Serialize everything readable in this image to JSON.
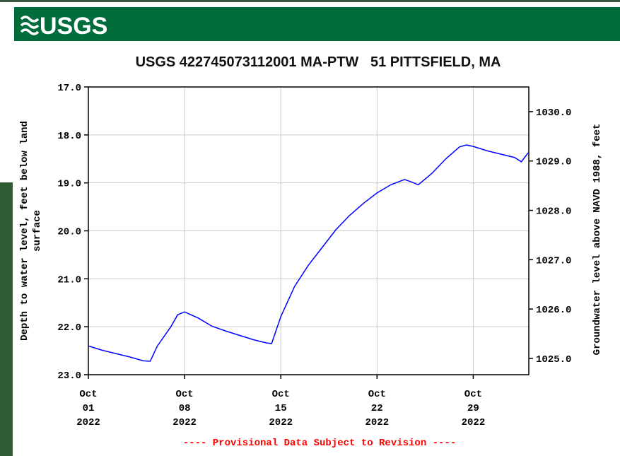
{
  "logo": "USGS",
  "chart_data": {
    "type": "line",
    "title": "USGS 422745073112001 MA-PTW   51 PITTSFIELD, MA",
    "ylabel": [
      "Depth to water level, feet below land",
      "surface"
    ],
    "y2label": "Groundwater level above NAVD 1988, feet",
    "note": "---- Provisional Data Subject to Revision ----",
    "x": [
      "2022-10-01",
      "2022-10-02",
      "2022-10-03",
      "2022-10-04",
      "2022-10-05",
      "2022-10-05T12:00",
      "2022-10-06",
      "2022-10-07",
      "2022-10-07T12:00",
      "2022-10-08",
      "2022-10-09",
      "2022-10-10",
      "2022-10-11",
      "2022-10-12",
      "2022-10-13",
      "2022-10-14",
      "2022-10-14T08:00",
      "2022-10-15",
      "2022-10-16",
      "2022-10-17",
      "2022-10-18",
      "2022-10-19",
      "2022-10-20",
      "2022-10-21",
      "2022-10-22",
      "2022-10-23",
      "2022-10-24",
      "2022-10-24T12:00",
      "2022-10-25",
      "2022-10-26",
      "2022-10-27",
      "2022-10-28",
      "2022-10-28T12:00",
      "2022-10-29",
      "2022-10-30",
      "2022-10-31",
      "2022-11-01",
      "2022-11-01T12:00",
      "2022-11-02"
    ],
    "series": [
      {
        "name": "Depth to water level",
        "color": "#0000ff",
        "values": [
          22.4,
          22.49,
          22.56,
          22.63,
          22.71,
          22.72,
          22.41,
          22.0,
          21.75,
          21.69,
          21.82,
          21.99,
          22.09,
          22.18,
          22.27,
          22.34,
          22.35,
          21.79,
          21.16,
          20.72,
          20.35,
          19.98,
          19.68,
          19.43,
          19.21,
          19.04,
          18.93,
          18.98,
          19.04,
          18.8,
          18.5,
          18.25,
          18.21,
          18.24,
          18.33,
          18.4,
          18.47,
          18.56,
          18.37
        ]
      }
    ],
    "xlim": [
      "2022-10-01",
      "2022-11-02T01:00"
    ],
    "xticks": [
      {
        "value": "2022-10-01",
        "label": [
          "Oct",
          "01",
          "2022"
        ]
      },
      {
        "value": "2022-10-08",
        "label": [
          "Oct",
          "08",
          "2022"
        ]
      },
      {
        "value": "2022-10-15",
        "label": [
          "Oct",
          "15",
          "2022"
        ]
      },
      {
        "value": "2022-10-22",
        "label": [
          "Oct",
          "22",
          "2022"
        ]
      },
      {
        "value": "2022-10-29",
        "label": [
          "Oct",
          "29",
          "2022"
        ]
      }
    ],
    "ylim": [
      17,
      23
    ],
    "y_inverted": true,
    "yticks": [
      {
        "value": 17,
        "label": "17.0"
      },
      {
        "value": 18,
        "label": "18.0"
      },
      {
        "value": 19,
        "label": "19.0"
      },
      {
        "value": 20,
        "label": "20.0"
      },
      {
        "value": 21,
        "label": "21.0"
      },
      {
        "value": 22,
        "label": "22.0"
      },
      {
        "value": 23,
        "label": "23.0"
      }
    ],
    "y2lim": [
      1024.67,
      1030.5
    ],
    "y2ticks": [
      {
        "value": 1025,
        "label": "1025.0"
      },
      {
        "value": 1026,
        "label": "1026.0"
      },
      {
        "value": 1027,
        "label": "1027.0"
      },
      {
        "value": 1028,
        "label": "1028.0"
      },
      {
        "value": 1029,
        "label": "1029.0"
      },
      {
        "value": 1030,
        "label": "1030.0"
      }
    ],
    "grid": true
  }
}
